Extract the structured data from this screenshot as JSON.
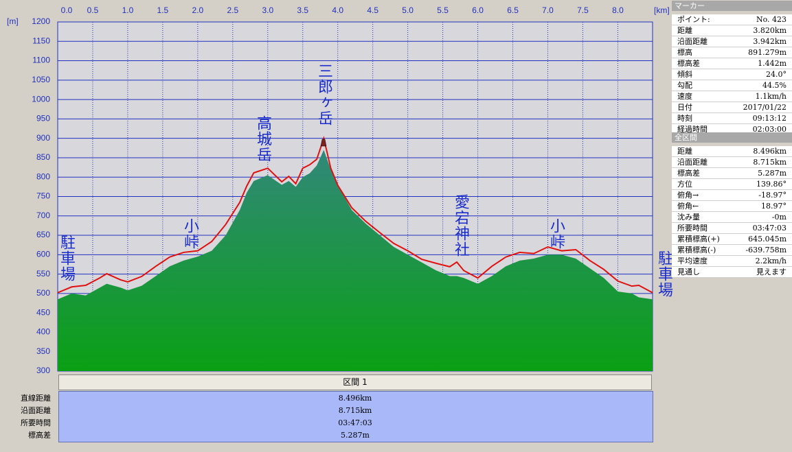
{
  "chart_data": {
    "type": "elevation-profile",
    "x_unit": "[km]",
    "y_unit": "[m]",
    "xlim": [
      0,
      8.496
    ],
    "ylim": [
      300,
      1200
    ],
    "xticks": [
      {
        "value": 0,
        "label": "0.0"
      },
      0.5,
      {
        "value": 1,
        "label": "1.0"
      },
      1.5,
      {
        "value": 2,
        "label": "2.0"
      },
      2.5,
      {
        "value": 3,
        "label": "3.0"
      },
      3.5,
      {
        "value": 4,
        "label": "4.0"
      },
      4.5,
      {
        "value": 5,
        "label": "5.0"
      },
      5.5,
      {
        "value": 6,
        "label": "6.0"
      },
      6.5,
      {
        "value": 7,
        "label": "7.0"
      },
      7.5,
      {
        "value": 8,
        "label": "8.0"
      }
    ],
    "yticks": [
      300,
      350,
      400,
      450,
      500,
      550,
      600,
      650,
      700,
      750,
      800,
      850,
      900,
      950,
      1000,
      1050,
      1100,
      1150,
      1200
    ],
    "grid": true,
    "x": [
      0,
      0.2,
      0.4,
      0.6,
      0.7,
      0.9,
      1.0,
      1.2,
      1.4,
      1.6,
      1.8,
      2.0,
      2.2,
      2.4,
      2.6,
      2.7,
      2.8,
      3.0,
      3.2,
      3.3,
      3.4,
      3.5,
      3.6,
      3.7,
      3.8,
      3.9,
      4.0,
      4.2,
      4.4,
      4.6,
      4.8,
      5.0,
      5.2,
      5.4,
      5.6,
      5.7,
      5.8,
      6.0,
      6.2,
      6.4,
      6.6,
      6.8,
      7.0,
      7.2,
      7.4,
      7.6,
      7.8,
      8.0,
      8.2,
      8.3,
      8.496
    ],
    "series": [
      {
        "style": "area",
        "color": "#0aa014",
        "top_color": "#33877f",
        "values": [
          485,
          500,
          495,
          515,
          525,
          515,
          508,
          520,
          545,
          570,
          585,
          595,
          610,
          650,
          715,
          760,
          790,
          805,
          780,
          790,
          775,
          800,
          810,
          830,
          870,
          820,
          780,
          715,
          680,
          650,
          620,
          600,
          580,
          560,
          545,
          545,
          540,
          525,
          545,
          570,
          585,
          590,
          600,
          600,
          590,
          565,
          540,
          505,
          500,
          490,
          485
        ]
      },
      {
        "style": "line",
        "color": "#e01010",
        "values": [
          502,
          517,
          521,
          540,
          551,
          535,
          530,
          544,
          570,
          594,
          606,
          610,
          634,
          678,
          735,
          777,
          811,
          823,
          788,
          802,
          783,
          823,
          832,
          846,
          900,
          823,
          779,
          721,
          686,
          657,
          629,
          610,
          588,
          578,
          569,
          581,
          559,
          540,
          570,
          594,
          606,
          603,
          620,
          610,
          613,
          585,
          562,
          532,
          519,
          521,
          502
        ]
      }
    ],
    "annotations": [
      "駐車場",
      "小峠",
      "高城岳",
      "三郎ヶ岳",
      "愛宕神社",
      "小峠",
      "駐車場"
    ]
  },
  "summary": {
    "header": "区間 1",
    "rows": [
      [
        "直線距離",
        "8.496km"
      ],
      [
        "沿面距離",
        "8.715km"
      ],
      [
        "所要時間",
        "03:47:03"
      ],
      [
        "標高差",
        "5.287m"
      ]
    ]
  },
  "marker_panel": {
    "title": "マーカー",
    "rows": [
      [
        "ポイント:",
        "No. 423"
      ],
      [
        "距離",
        "3.820km"
      ],
      [
        "沿面距離",
        "3.942km"
      ],
      [
        "標高",
        "891.279m"
      ],
      [
        "標高差",
        "1.442m"
      ],
      [
        "傾斜",
        "24.0°"
      ],
      [
        "勾配",
        "44.5%"
      ],
      [
        "速度",
        "1.1km/h"
      ],
      [
        "日付",
        "2017/01/22"
      ],
      [
        "時刻",
        "09:13:12"
      ],
      [
        "経過時間",
        "02:03:00"
      ]
    ]
  },
  "total_panel": {
    "title": "全区間",
    "rows": [
      [
        "距離",
        "8.496km"
      ],
      [
        "沿面距離",
        "8.715km"
      ],
      [
        "標高差",
        "5.287m"
      ],
      [
        "方位",
        "139.86°"
      ],
      [
        "俯角→",
        "-18.97°"
      ],
      [
        "俯角←",
        "18.97°"
      ],
      [
        "沈み量",
        "-0m"
      ],
      [
        "所要時間",
        "03:47:03"
      ],
      [
        "累積標高(+)",
        "645.045m"
      ],
      [
        "累積標高(-)",
        "-639.758m"
      ],
      [
        "平均速度",
        "2.2km/h"
      ],
      [
        "見通し",
        "見えます"
      ]
    ]
  }
}
